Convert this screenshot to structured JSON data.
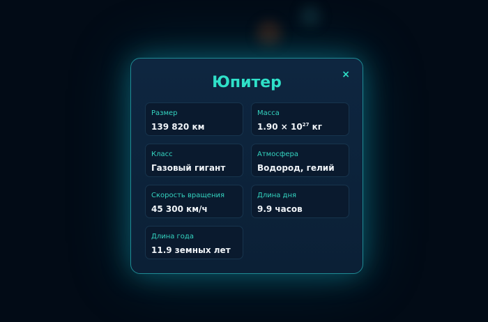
{
  "modal": {
    "title": "Юпитер",
    "close": "×",
    "cards": [
      {
        "label": "Размер",
        "value": "139 820 км"
      },
      {
        "label": "Масса",
        "value_base": "1.90 × 10",
        "value_exp": "27",
        "value_unit": " кг"
      },
      {
        "label": "Класс",
        "value": "Газовый гигант"
      },
      {
        "label": "Атмосфера",
        "value": "Водород, гелий"
      },
      {
        "label": "Скорость вращения",
        "value": "45 300 км/ч"
      },
      {
        "label": "Длина дня",
        "value": "9.9 часов"
      },
      {
        "label": "Длина года",
        "value": "11.9 земных лет"
      }
    ]
  }
}
